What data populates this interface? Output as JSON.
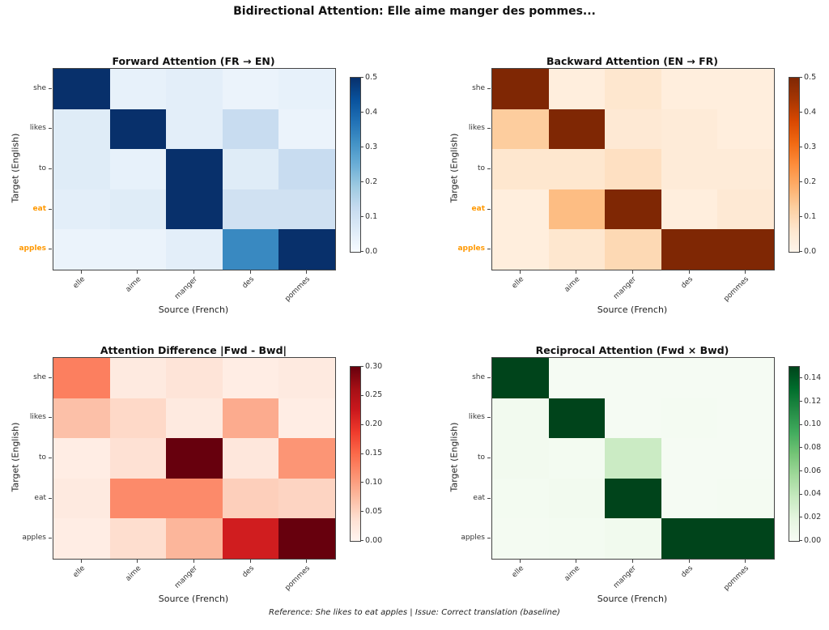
{
  "figure": {
    "title": "Bidirectional Attention: Elle aime manger des pommes...",
    "footer": "Reference: She likes to eat apples | Issue: Correct translation (baseline)",
    "background_color": "#ffffff",
    "highlight_color": "#ff9800",
    "spine_color": "#444444"
  },
  "chart_data": [
    {
      "type": "heatmap",
      "title": "Forward Attention (FR → EN)",
      "xlabel": "Source (French)",
      "ylabel": "Target (English)",
      "x_categories": [
        "elle",
        "aime",
        "manger",
        "des",
        "pommes"
      ],
      "y_categories": [
        "she",
        "likes",
        "to",
        "eat",
        "apples"
      ],
      "highlighted_y_labels": [
        "eat",
        "apples"
      ],
      "colormap": "Blues",
      "colormap_anchors": [
        "#f7fbff",
        "#deebf7",
        "#c6dbef",
        "#9ecae1",
        "#6baed6",
        "#4292c6",
        "#2171b5",
        "#08519c",
        "#08306b"
      ],
      "vmin": 0,
      "vmax": 0.5,
      "colorbar_ticks": [
        "0.5",
        "0.4",
        "0.3",
        "0.2",
        "0.1",
        "0.0"
      ],
      "values": [
        [
          0.5,
          0.04,
          0.05,
          0.03,
          0.04
        ],
        [
          0.06,
          0.5,
          0.05,
          0.12,
          0.03
        ],
        [
          0.06,
          0.04,
          0.5,
          0.06,
          0.12
        ],
        [
          0.05,
          0.06,
          0.5,
          0.1,
          0.1
        ],
        [
          0.03,
          0.03,
          0.05,
          0.33,
          0.5
        ]
      ]
    },
    {
      "type": "heatmap",
      "title": "Backward Attention (EN → FR)",
      "xlabel": "Source (French)",
      "ylabel": "Target (English)",
      "x_categories": [
        "elle",
        "aime",
        "manger",
        "des",
        "pommes"
      ],
      "y_categories": [
        "she",
        "likes",
        "to",
        "eat",
        "apples"
      ],
      "highlighted_y_labels": [
        "eat",
        "apples"
      ],
      "colormap": "Oranges",
      "colormap_anchors": [
        "#fff5eb",
        "#fee6ce",
        "#fdd0a2",
        "#fdae6b",
        "#fd8d3c",
        "#f16913",
        "#d94801",
        "#a63603",
        "#7f2704"
      ],
      "vmin": 0,
      "vmax": 0.5,
      "colorbar_ticks": [
        "0.5",
        "0.4",
        "0.3",
        "0.2",
        "0.1",
        "0.0"
      ],
      "values": [
        [
          0.5,
          0.03,
          0.06,
          0.03,
          0.03
        ],
        [
          0.13,
          0.5,
          0.05,
          0.04,
          0.03
        ],
        [
          0.06,
          0.06,
          0.08,
          0.04,
          0.04
        ],
        [
          0.03,
          0.16,
          0.5,
          0.03,
          0.05
        ],
        [
          0.03,
          0.06,
          0.1,
          0.5,
          0.5
        ]
      ]
    },
    {
      "type": "heatmap",
      "title": "Attention Difference |Fwd - Bwd|",
      "xlabel": "Source (French)",
      "ylabel": "Target (English)",
      "x_categories": [
        "elle",
        "aime",
        "manger",
        "des",
        "pommes"
      ],
      "y_categories": [
        "she",
        "likes",
        "to",
        "eat",
        "apples"
      ],
      "highlighted_y_labels": [],
      "colormap": "Reds",
      "colormap_anchors": [
        "#fff5f0",
        "#fee0d2",
        "#fcbba1",
        "#fc9272",
        "#fb6a4a",
        "#ef3b2c",
        "#cb181d",
        "#a50f15",
        "#67000d"
      ],
      "vmin": 0,
      "vmax": 0.3,
      "colorbar_ticks": [
        "0.30",
        "0.25",
        "0.20",
        "0.15",
        "0.10",
        "0.05",
        "0.00"
      ],
      "values": [
        [
          0.13,
          0.02,
          0.03,
          0.015,
          0.02
        ],
        [
          0.07,
          0.045,
          0.02,
          0.09,
          0.015
        ],
        [
          0.015,
          0.035,
          0.3,
          0.025,
          0.11
        ],
        [
          0.02,
          0.12,
          0.12,
          0.055,
          0.05
        ],
        [
          0.015,
          0.04,
          0.08,
          0.22,
          0.3
        ]
      ]
    },
    {
      "type": "heatmap",
      "title": "Reciprocal Attention (Fwd × Bwd)",
      "xlabel": "Source (French)",
      "ylabel": "Target (English)",
      "x_categories": [
        "elle",
        "aime",
        "manger",
        "des",
        "pommes"
      ],
      "y_categories": [
        "she",
        "likes",
        "to",
        "eat",
        "apples"
      ],
      "highlighted_y_labels": [],
      "colormap": "Greens",
      "colormap_anchors": [
        "#f7fcf5",
        "#e5f5e0",
        "#c7e9c0",
        "#a1d99b",
        "#74c476",
        "#41ab5d",
        "#238b45",
        "#006d2c",
        "#00441b"
      ],
      "vmin": 0,
      "vmax": 0.15,
      "colorbar_ticks": [
        "0.14",
        "0.12",
        "0.10",
        "0.08",
        "0.06",
        "0.04",
        "0.02",
        "0.00"
      ],
      "values": [
        [
          0.15,
          0.002,
          0.002,
          0.002,
          0.002
        ],
        [
          0.005,
          0.15,
          0.002,
          0.003,
          0.002
        ],
        [
          0.005,
          0.004,
          0.035,
          0.002,
          0.002
        ],
        [
          0.004,
          0.005,
          0.15,
          0.002,
          0.003
        ],
        [
          0.003,
          0.004,
          0.006,
          0.15,
          0.15
        ]
      ]
    }
  ]
}
